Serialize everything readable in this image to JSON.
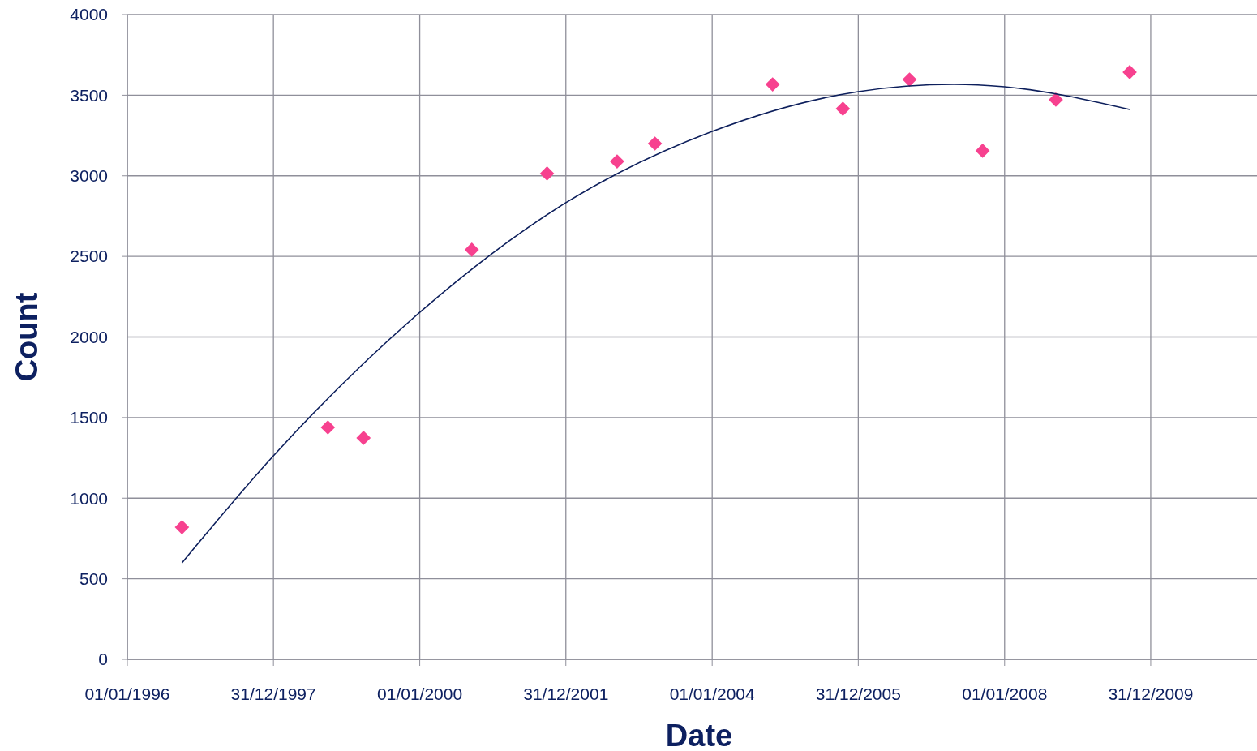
{
  "chart_data": {
    "type": "scatter",
    "xlabel": "Date",
    "ylabel": "Count",
    "xlim": [
      "1996-01-01",
      "2011-06-15"
    ],
    "ylim": [
      0,
      4000
    ],
    "xticks": [
      {
        "value": "1996-01-01",
        "label": "01/01/1996"
      },
      {
        "value": "1997-12-31",
        "label": "31/12/1997"
      },
      {
        "value": "2000-01-01",
        "label": "01/01/2000"
      },
      {
        "value": "2001-12-31",
        "label": "31/12/2001"
      },
      {
        "value": "2004-01-01",
        "label": "01/01/2004"
      },
      {
        "value": "2005-12-31",
        "label": "31/12/2005"
      },
      {
        "value": "2008-01-01",
        "label": "01/01/2008"
      },
      {
        "value": "2009-12-31",
        "label": "31/12/2009"
      }
    ],
    "yticks": [
      0,
      500,
      1000,
      1500,
      2000,
      2500,
      3000,
      3500,
      4000
    ],
    "grid": true,
    "series": [
      {
        "marker": "diamond",
        "color": "#f7418f",
        "x": [
          "1996-09-30",
          "1998-09-29",
          "1999-03-26",
          "2000-09-17",
          "2001-09-28",
          "2002-09-13",
          "2003-03-21",
          "2004-10-29",
          "2005-10-15",
          "2006-09-13",
          "2007-09-13",
          "2008-09-13",
          "2009-09-17"
        ],
        "values": [
          820,
          1439,
          1374,
          2541,
          3014,
          3089,
          3200,
          3567,
          3416,
          3597,
          3155,
          3472,
          3643
        ]
      },
      {
        "type": "line",
        "marker": "none",
        "line_style": "solid",
        "color": "#0d1f5c",
        "x": [
          "1996-09-30",
          "1997-12-31",
          "2000-01-01",
          "2001-12-31",
          "2004-01-01",
          "2005-12-31",
          "2007-04-22",
          "2008-01-01",
          "2009-09-17"
        ],
        "values": [
          599,
          1263,
          2153,
          2833,
          3275,
          3522,
          3567,
          3552,
          3411
        ]
      }
    ]
  }
}
